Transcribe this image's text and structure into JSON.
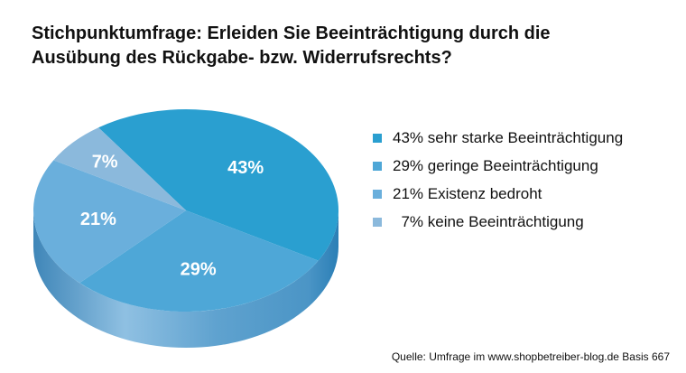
{
  "title_lines": [
    "Stichpunktumfrage: Erleiden Sie Beeinträchtigung durch die",
    "Ausübung des Rückgabe- bzw. Widerrufsrechts?"
  ],
  "source": "Quelle: Umfrage im www.shopbetreiber-blog.de Basis 667",
  "chart_data": {
    "type": "pie",
    "title": "Stichpunktumfrage: Erleiden Sie Beeinträchtigung durch die Ausübung des Rückgabe- bzw. Widerrufsrechts?",
    "style": "3d",
    "legend_placement": "right",
    "slices": [
      {
        "label": "43%",
        "legend": "43% sehr starke Beeinträchtigung",
        "value": 43,
        "color": "#2a9fd0"
      },
      {
        "label": "29%",
        "legend": "29% geringe Beeinträchtigung",
        "value": 29,
        "color": "#4ea7d7"
      },
      {
        "label": "21%",
        "legend": "21% Existenz bedroht",
        "value": 21,
        "color": "#6aafdc"
      },
      {
        "label": "7%",
        "legend": "  7% keine Beeinträchtigung",
        "value": 7,
        "color": "#8bb9dc"
      }
    ]
  }
}
